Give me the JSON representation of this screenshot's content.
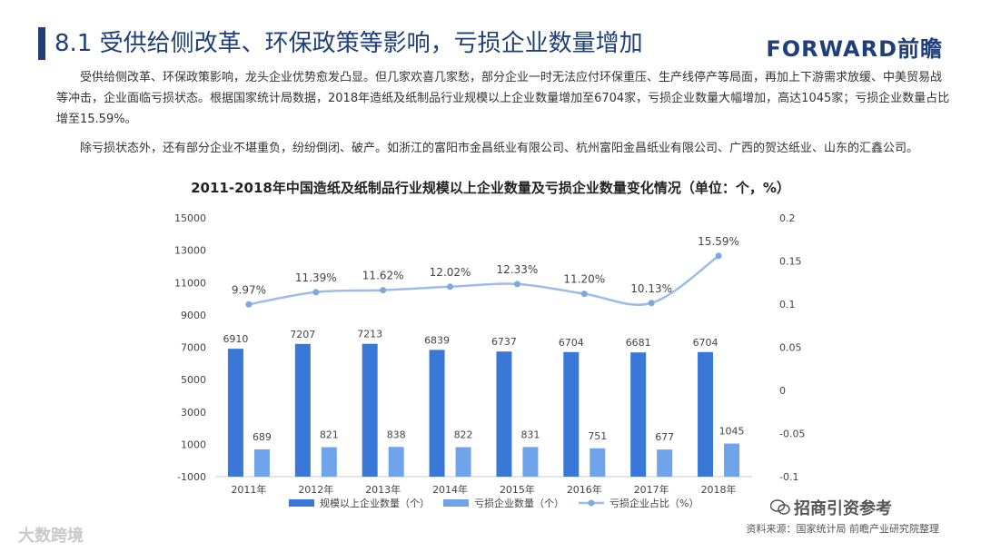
{
  "header": {
    "title": "8.1 受供给侧改革、环保政策等影响，亏损企业数量增加",
    "logo": "FORWARD前瞻"
  },
  "paragraphs": [
    "受供给侧改革、环保政策影响，龙头企业优势愈发凸显。但几家欢喜几家愁，部分企业一时无法应付环保重压、生产线停产等局面，再加上下游需求放缓、中美贸易战等冲击，企业面临亏损状态。根据国家统计局数据，2018年造纸及纸制品行业规模以上企业数量增加至6704家，亏损企业数量大幅增加，高达1045家；亏损企业数量占比增至15.59%。",
    "除亏损状态外，还有部分企业不堪重负，纷纷倒闭、破产。如浙江的富阳市金昌纸业有限公司、杭州富阳金昌纸业有限公司、广西的贺达纸业、山东的汇鑫公司。"
  ],
  "footer": {
    "source": "资料来源：国家统计局  前瞻产业研究院整理",
    "watermark_left": "大数跨境",
    "watermark_right": "招商引资参考"
  },
  "chart_data": {
    "type": "bar",
    "title": "2011-2018年中国造纸及纸制品行业规模以上企业数量及亏损企业数量变化情况（单位：个，%）",
    "categories": [
      "2011年",
      "2012年",
      "2013年",
      "2014年",
      "2015年",
      "2016年",
      "2017年",
      "2018年"
    ],
    "series": [
      {
        "name": "规模以上企业数量（个）",
        "type": "bar",
        "axis": "left",
        "color": "#3a78d8",
        "values": [
          6910,
          7207,
          7213,
          6839,
          6737,
          6704,
          6681,
          6704
        ],
        "labels": [
          "6910",
          "7207",
          "7213",
          "6839",
          "6737",
          "6704",
          "6681",
          "6704"
        ]
      },
      {
        "name": "亏损企业数量（个）",
        "type": "bar",
        "axis": "left",
        "color": "#6fa3ea",
        "values": [
          689,
          821,
          838,
          822,
          831,
          751,
          677,
          1045
        ],
        "labels": [
          "689",
          "821",
          "838",
          "822",
          "831",
          "751",
          "677",
          "1045"
        ]
      },
      {
        "name": "亏损企业占比（%）",
        "type": "line",
        "axis": "right",
        "color": "#9dbde6",
        "values": [
          0.0997,
          0.1139,
          0.1162,
          0.1202,
          0.1233,
          0.112,
          0.1013,
          0.1559
        ],
        "labels": [
          "9.97%",
          "11.39%",
          "11.62%",
          "12.02%",
          "12.33%",
          "11.20%",
          "10.13%",
          "15.59%"
        ]
      }
    ],
    "y_left": {
      "min": -1000,
      "max": 15000,
      "ticks": [
        -1000,
        1000,
        3000,
        5000,
        7000,
        9000,
        11000,
        13000,
        15000
      ]
    },
    "y_right": {
      "min": -0.1,
      "max": 0.2,
      "ticks": [
        "-0.1",
        "-0.05",
        "0",
        "0.05",
        "0.1",
        "0.15",
        "0.2"
      ]
    },
    "legend": "bottom",
    "grid": false
  }
}
